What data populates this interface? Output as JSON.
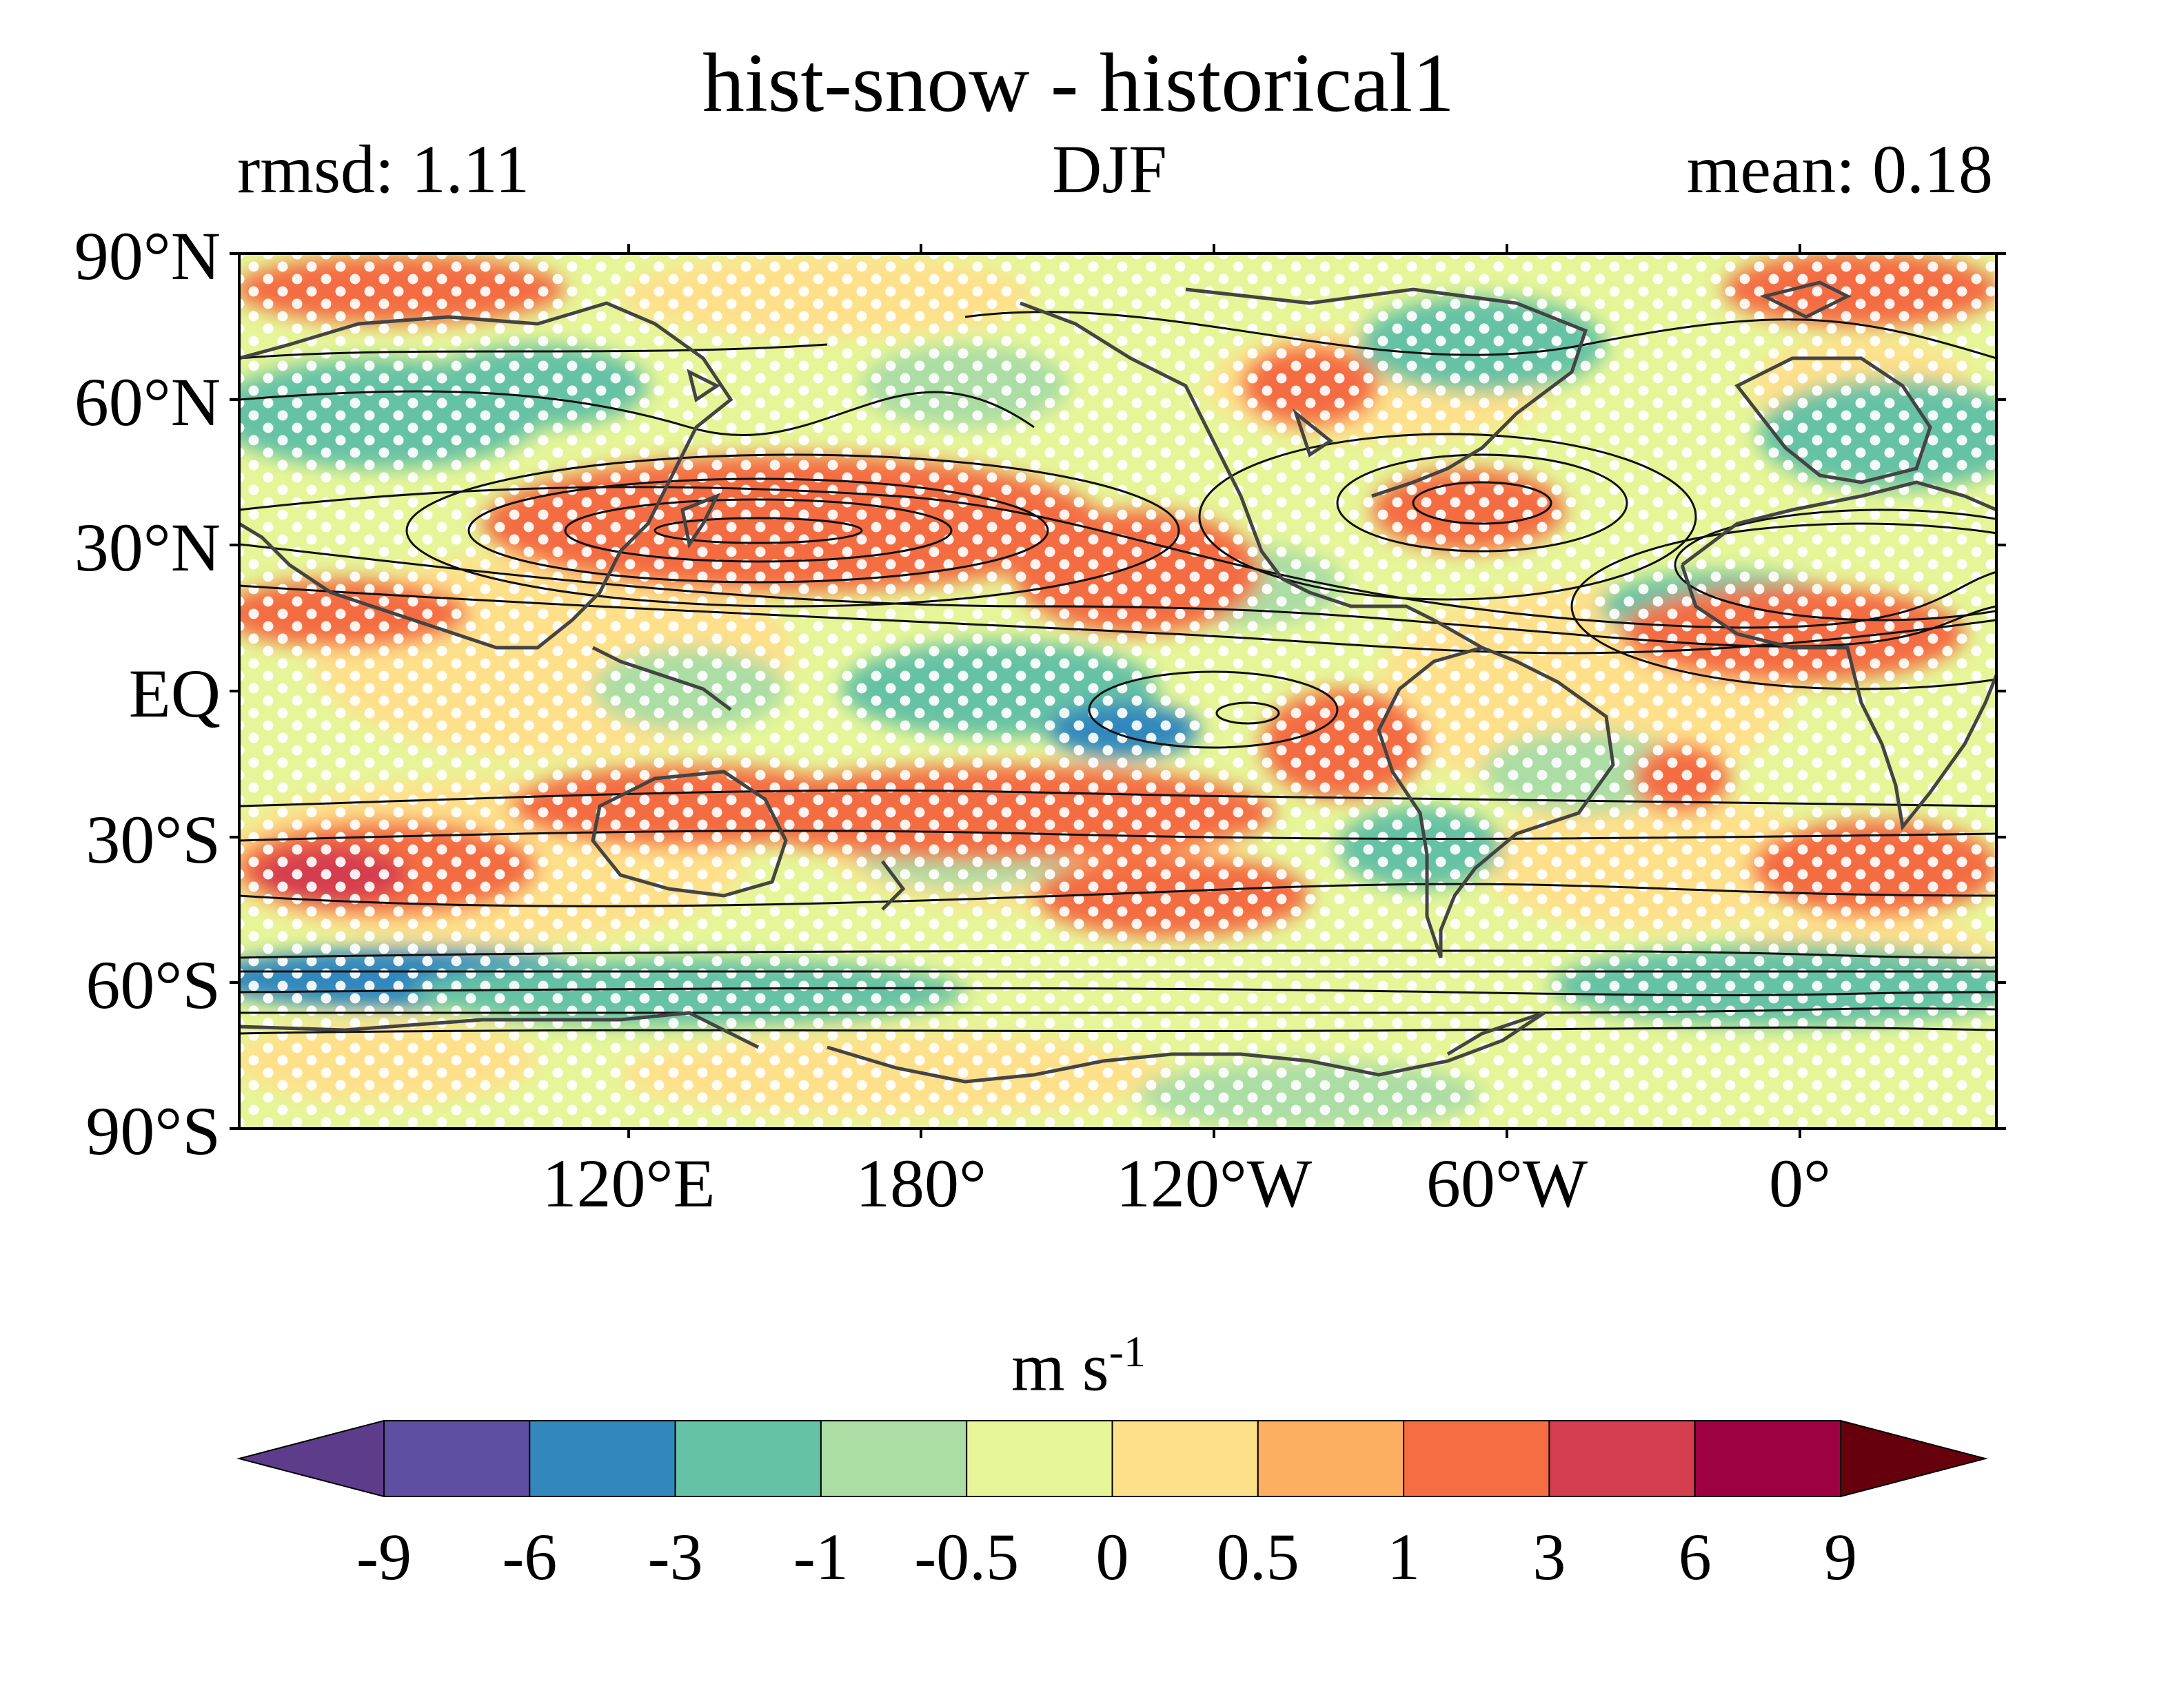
{
  "title": "hist-snow - historical1",
  "subtitle_left": "rmsd: 1.11",
  "subtitle_center": "DJF",
  "subtitle_right": "mean: 0.18",
  "lat_labels": [
    "90°N",
    "60°N",
    "30°N",
    "EQ",
    "30°S",
    "60°S",
    "90°S"
  ],
  "lon_labels": [
    "120°E",
    "180°",
    "120°W",
    "60°W",
    "0°"
  ],
  "colorbar": {
    "unit_main": "m s",
    "unit_exp": "-1",
    "ticks": [
      "-9",
      "-6",
      "-3",
      "-1",
      "-0.5",
      "0",
      "0.5",
      "1",
      "3",
      "6",
      "9"
    ],
    "colors": [
      "#5e3c8c",
      "#5e4fa2",
      "#3288bd",
      "#66c2a5",
      "#abdda4",
      "#e6f598",
      "#fee08b",
      "#fdae61",
      "#f46d43",
      "#d53e4f",
      "#9e0142",
      "#67000d"
    ],
    "extend": "both"
  },
  "map": {
    "projection": "equirectangular",
    "central_longitude": "-150",
    "stippling": "white dots (significant regions)",
    "contours": "black climatology jet-stream contours",
    "coastlines": "dark grey"
  }
}
